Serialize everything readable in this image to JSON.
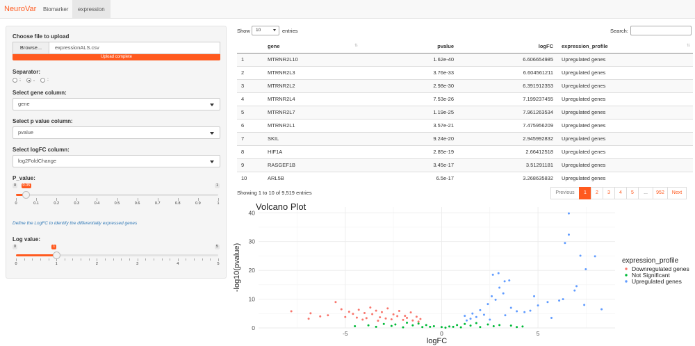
{
  "navbar": {
    "brand": "NeuroVar",
    "tabs": [
      {
        "label": "Biomarker",
        "active": false
      },
      {
        "label": "expression",
        "active": true
      }
    ]
  },
  "sidebar": {
    "file_label": "Choose file to upload",
    "browse_label": "Browse...",
    "file_name": "expressionALS.csv",
    "upload_status": "Upload complete",
    "separator_label": "Separator:",
    "separator_options": [
      ";",
      ",",
      ":"
    ],
    "separator_selected": ",",
    "gene_column_label": "Select gene column:",
    "gene_column_value": "gene",
    "pvalue_column_label": "Select p value column:",
    "pvalue_column_value": "pvalue",
    "logfc_column_label": "Select logFC column:",
    "logfc_column_value": "log2FoldChange",
    "pvalue_slider": {
      "label": "P_value:",
      "min": "0",
      "max": "1",
      "value": "0.05",
      "value_fraction": 0.05,
      "ticks": [
        "0",
        "0.1",
        "0.2",
        "0.3",
        "0.4",
        "0.5",
        "0.6",
        "0.7",
        "0.8",
        "0.9",
        "1"
      ]
    },
    "help_text": "Define the LogFC to identify the differentially expressed genes",
    "log_slider": {
      "label": "Log value:",
      "min": "0",
      "max": "5",
      "value": "1",
      "value_fraction": 0.2,
      "ticks": [
        "0",
        "1",
        "2",
        "3",
        "4",
        "5"
      ]
    }
  },
  "table": {
    "show_label": "Show",
    "entries_label": "entries",
    "length_value": "10",
    "search_label": "Search:",
    "columns": [
      "",
      "gene",
      "pvalue",
      "logFC",
      "expression_profile"
    ],
    "rows": [
      [
        "1",
        "MTRNR2L10",
        "1.62e-40",
        "6.606654985",
        "Upregulated genes"
      ],
      [
        "2",
        "MTRNR2L3",
        "3.76e-33",
        "6.604561211",
        "Upregulated genes"
      ],
      [
        "3",
        "MTRNR2L2",
        "2.98e-30",
        "6.391912353",
        "Upregulated genes"
      ],
      [
        "4",
        "MTRNR2L4",
        "7.53e-26",
        "7.199237455",
        "Upregulated genes"
      ],
      [
        "5",
        "MTRNR2L7",
        "1.19e-25",
        "7.961263534",
        "Upregulated genes"
      ],
      [
        "6",
        "MTRNR2L1",
        "3.57e-21",
        "7.475956209",
        "Upregulated genes"
      ],
      [
        "7",
        "SKIL",
        "9.24e-20",
        "2.945992832",
        "Upregulated genes"
      ],
      [
        "8",
        "HIF1A",
        "2.85e-19",
        "2.66412518",
        "Upregulated genes"
      ],
      [
        "9",
        "RASGEF1B",
        "3.45e-17",
        "3.51291181",
        "Upregulated genes"
      ],
      [
        "10",
        "ARL5B",
        "6.5e-17",
        "3.268635832",
        "Upregulated genes"
      ]
    ],
    "info": "Showing 1 to 10 of 9,519 entries",
    "pagination": {
      "previous": "Previous",
      "pages": [
        "1",
        "2",
        "3",
        "4",
        "5",
        "...",
        "952"
      ],
      "current": "1",
      "next": "Next"
    }
  },
  "chart_data": {
    "type": "scatter",
    "title": "Volcano Plot",
    "xlabel": "logFC",
    "ylabel": "-log10(pvalue)",
    "xlim": [
      -9.5,
      9
    ],
    "ylim": [
      0,
      42
    ],
    "xticks": [
      "-5",
      "0",
      "5"
    ],
    "yticks": [
      "0",
      "10",
      "20",
      "30",
      "40"
    ],
    "legend_title": "expression_profile",
    "legend_position": "right",
    "grid": true,
    "series": [
      {
        "name": "Downregulated genes",
        "color": "#f8766d",
        "x": [
          -7.8,
          -6.9,
          -6.8,
          -5.5,
          -5.2,
          -4.8,
          -4.6,
          -4.3,
          -4.0,
          -3.7,
          -3.4,
          -3.1,
          -2.8,
          -2.5,
          -2.2,
          -1.9,
          -1.6,
          -1.3,
          -1.1,
          -5.9,
          -4.4,
          -3.6,
          -2.9,
          -2.3,
          -1.8,
          -6.3,
          -5.0,
          -3.9,
          -3.2,
          -2.6,
          -2.0,
          -1.5,
          -1.2,
          -4.1,
          -3.3
        ],
        "y": [
          5.8,
          3.2,
          5.1,
          9.0,
          6.5,
          5.6,
          4.9,
          6.3,
          5.2,
          7.1,
          6.0,
          5.5,
          6.8,
          4.7,
          5.9,
          4.2,
          5.4,
          3.9,
          3.1,
          4.4,
          3.6,
          4.8,
          3.3,
          4.1,
          3.5,
          4.0,
          3.8,
          3.4,
          3.7,
          3.0,
          2.8,
          2.6,
          2.2,
          2.9,
          2.5
        ]
      },
      {
        "name": "Not Significant",
        "color": "#00ba38",
        "x": [
          -4.5,
          -3.8,
          -3.0,
          -2.4,
          -1.8,
          -1.2,
          -0.8,
          -0.4,
          0.0,
          0.4,
          0.8,
          1.2,
          1.8,
          2.4,
          3.0,
          3.6,
          4.2,
          -3.4,
          -2.6,
          -1.5,
          -0.6,
          0.6,
          1.5,
          2.7,
          3.9,
          -2.0,
          -1.0,
          0.2,
          1.0,
          2.0
        ],
        "y": [
          0.6,
          0.9,
          1.4,
          1.2,
          1.8,
          1.5,
          1.0,
          0.6,
          0.3,
          0.5,
          1.0,
          1.4,
          1.7,
          1.2,
          1.0,
          0.8,
          0.5,
          0.4,
          0.7,
          0.9,
          0.4,
          0.4,
          0.8,
          0.6,
          0.3,
          0.2,
          0.3,
          0.1,
          0.2,
          0.3
        ]
      },
      {
        "name": "Upregulated genes",
        "color": "#619cff",
        "x": [
          6.6,
          6.6,
          6.4,
          7.2,
          7.96,
          7.48,
          2.95,
          2.66,
          3.51,
          3.27,
          3.0,
          3.2,
          2.6,
          4.8,
          5.5,
          6.3,
          6.9,
          7.4,
          8.3,
          1.2,
          1.6,
          2.0,
          2.4,
          3.6,
          4.3,
          5.0,
          5.7,
          6.1,
          7.0,
          1.5,
          2.2,
          2.8,
          3.9,
          4.6,
          1.3,
          1.8,
          2.5,
          3.3
        ],
        "y": [
          39.8,
          32.4,
          29.5,
          25.1,
          24.9,
          20.4,
          19.0,
          18.5,
          16.5,
          16.2,
          14.0,
          12.0,
          11.0,
          11.0,
          9.0,
          10.0,
          13.0,
          8.0,
          6.5,
          4.2,
          5.0,
          6.2,
          8.3,
          7.0,
          5.5,
          7.8,
          3.5,
          9.5,
          14.5,
          3.2,
          4.6,
          9.8,
          5.8,
          6.0,
          2.6,
          3.8,
          2.9,
          4.4
        ]
      }
    ]
  }
}
